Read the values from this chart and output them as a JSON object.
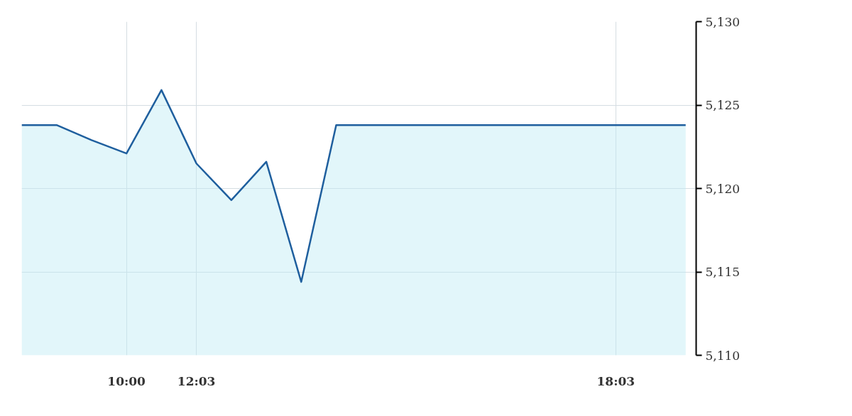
{
  "chart_data": {
    "type": "area",
    "categories": [
      null,
      null,
      null,
      "10:00",
      null,
      "12:03",
      null,
      null,
      null,
      null,
      null,
      null,
      null,
      null,
      null,
      null,
      null,
      "18:03",
      null,
      null
    ],
    "series": [
      {
        "color": "#1f5f9e",
        "values": [
          5123.8,
          5123.8,
          5122.9,
          5122.1,
          5125.9,
          5121.5,
          5119.3,
          5121.6,
          5114.4,
          5123.8,
          5123.8,
          5123.8,
          5123.8,
          5123.8,
          5123.8,
          5123.8,
          5123.8,
          5123.8,
          5123.8,
          5123.8
        ]
      }
    ],
    "ylim": [
      5110,
      5130
    ],
    "yticks": [
      {
        "value": 5110,
        "label": "5,110"
      },
      {
        "value": 5115,
        "label": "5,115"
      },
      {
        "value": 5120,
        "label": "5,120"
      },
      {
        "value": 5125,
        "label": "5,125"
      },
      {
        "value": 5130,
        "label": "5,130"
      }
    ],
    "grid": true
  }
}
